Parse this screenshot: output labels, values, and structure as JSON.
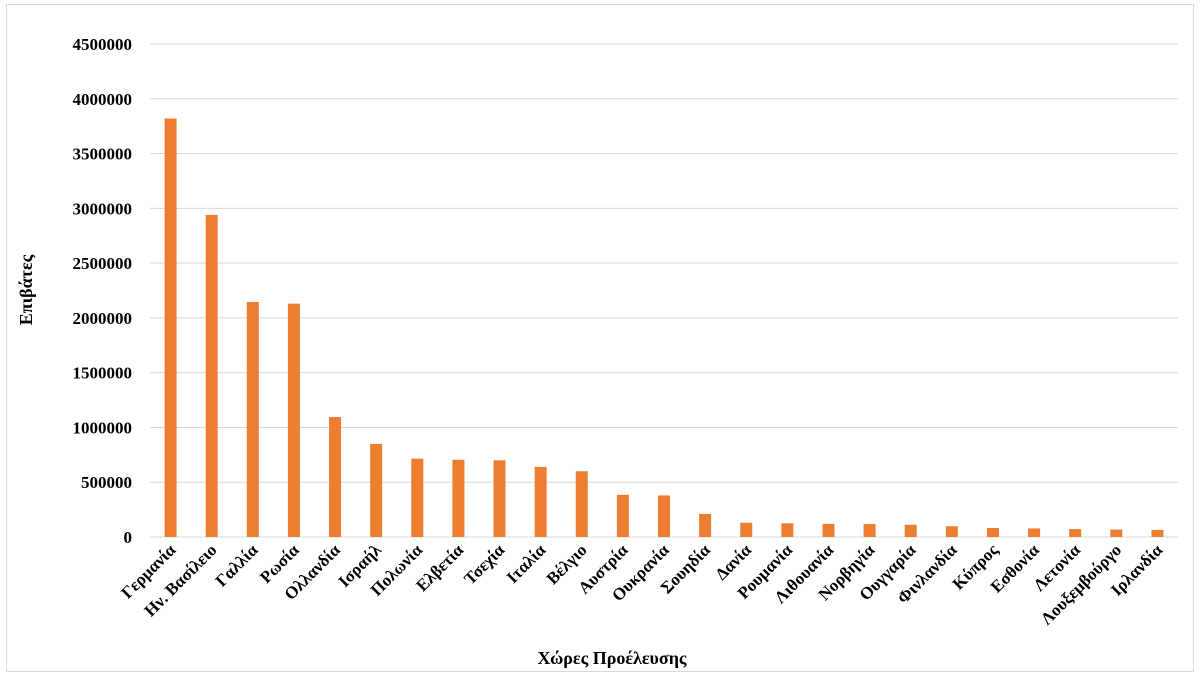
{
  "chart_data": {
    "type": "bar",
    "title": "",
    "xlabel": "Χώρες Προέλευσης",
    "ylabel": "Επιβάτες",
    "ylim": [
      0,
      4500000
    ],
    "yticks": [
      "0",
      "500000",
      "1000000",
      "1500000",
      "2000000",
      "2500000",
      "3000000",
      "3500000",
      "4000000",
      "4500000"
    ],
    "grid": true,
    "bar_color": "#ED7D31",
    "categories": [
      "Γερμανία",
      "Ην. Βασίλειο",
      "Γαλλία",
      "Ρωσία",
      "Ολλανδία",
      "Ισραήλ",
      "Πολωνία",
      "Ελβετία",
      "Τσεχία",
      "Ιταλία",
      "Βέλγιο",
      "Αυστρία",
      "Ουκρανία",
      "Σουηδία",
      "Δανία",
      "Ρουμανία",
      "Λιθουανία",
      "Νορβηγία",
      "Ουγγαρία",
      "Φινλανδία",
      "Κύπρος",
      "Εσθονία",
      "Λετονία",
      "Λουξεμβούργο",
      "Ιρλανδία"
    ],
    "values": [
      3820000,
      2940000,
      2145000,
      2130000,
      1095000,
      850000,
      715000,
      705000,
      700000,
      640000,
      600000,
      385000,
      380000,
      210000,
      130000,
      125000,
      120000,
      118000,
      112000,
      98000,
      82000,
      78000,
      72000,
      68000,
      65000
    ]
  }
}
